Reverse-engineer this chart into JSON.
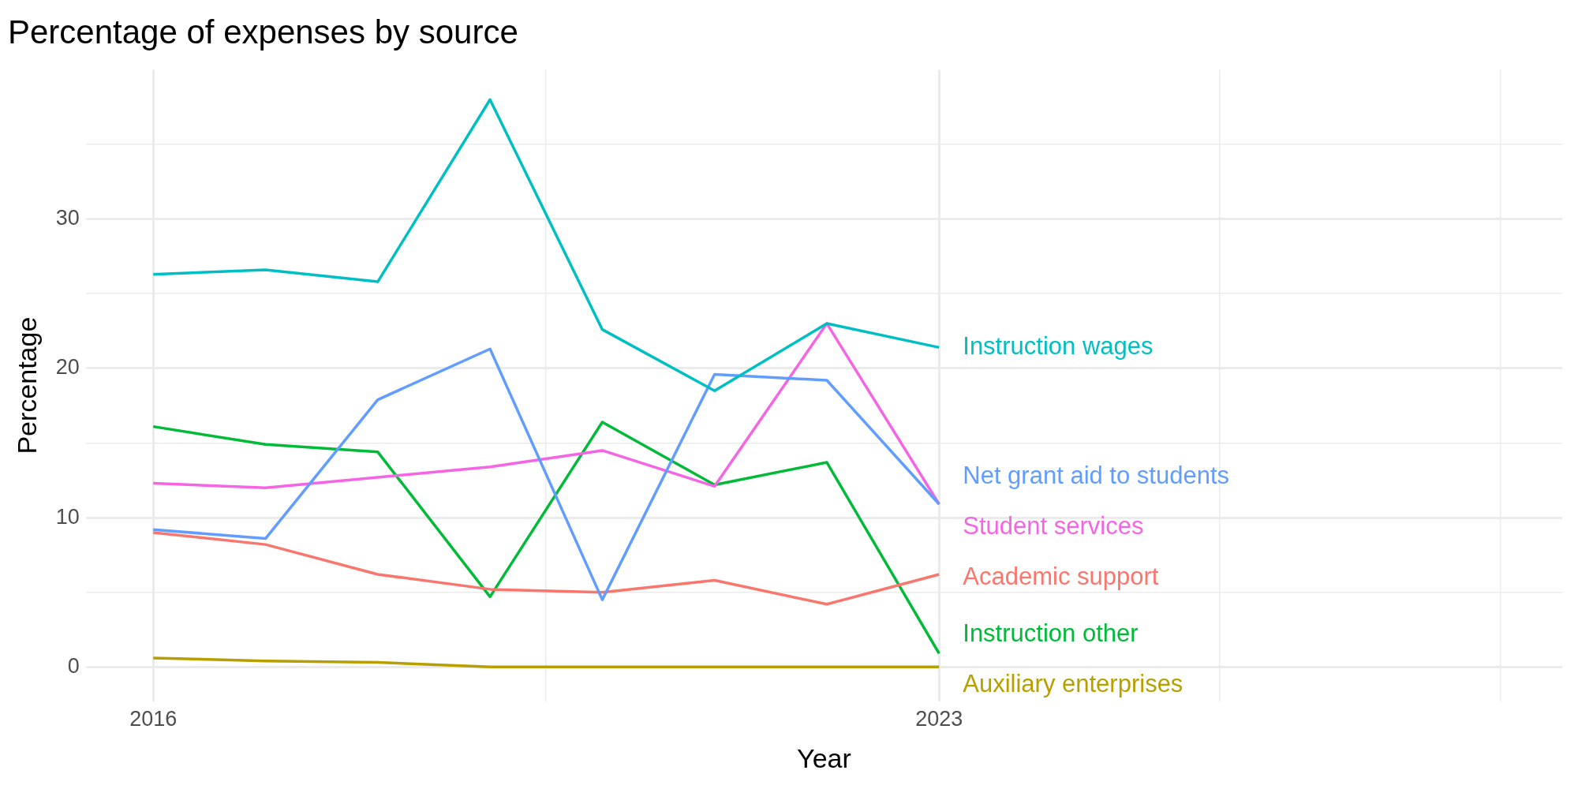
{
  "chart_data": {
    "type": "line",
    "title": "Percentage of expenses by source",
    "xlabel": "Year",
    "ylabel": "Percentage",
    "x": [
      2016,
      2017,
      2018,
      2019,
      2020,
      2021,
      2022,
      2023
    ],
    "series": [
      {
        "name": "Instruction wages",
        "color": "#00bfc4",
        "values": [
          26.3,
          26.6,
          25.8,
          38.0,
          22.6,
          18.5,
          23.0,
          21.4
        ]
      },
      {
        "name": "Net grant aid to students",
        "color": "#619cff",
        "values": [
          9.2,
          8.6,
          17.9,
          21.3,
          4.5,
          19.6,
          19.2,
          10.9
        ]
      },
      {
        "name": "Student services",
        "color": "#f564e3",
        "values": [
          12.3,
          12.0,
          12.7,
          13.4,
          14.5,
          12.1,
          23.0,
          10.9
        ]
      },
      {
        "name": "Academic support",
        "color": "#f8766d",
        "values": [
          9.0,
          8.2,
          6.2,
          5.2,
          5.0,
          5.8,
          4.2,
          6.2
        ]
      },
      {
        "name": "Instruction other",
        "color": "#00ba38",
        "values": [
          16.1,
          14.9,
          14.4,
          4.7,
          16.4,
          12.2,
          13.7,
          0.9
        ]
      },
      {
        "name": "Auxiliary enterprises",
        "color": "#b79f00",
        "values": [
          0.6,
          0.4,
          0.3,
          0,
          0,
          0,
          0,
          0
        ]
      }
    ],
    "xlim": [
      2015.4,
      2028.55
    ],
    "xticks": [
      2016,
      {
        "value": 2019.5,
        "label": null
      },
      2023,
      {
        "value": 2025.5,
        "label": null
      },
      {
        "value": 2028,
        "label": null
      }
    ],
    "ylim": [
      -2.3,
      40
    ],
    "yticks": [
      0,
      {
        "value": 5,
        "label": null
      },
      10,
      {
        "value": 15,
        "label": null
      },
      20,
      {
        "value": 25,
        "label": null
      },
      30,
      {
        "value": 35,
        "label": null
      }
    ],
    "grid": true
  }
}
